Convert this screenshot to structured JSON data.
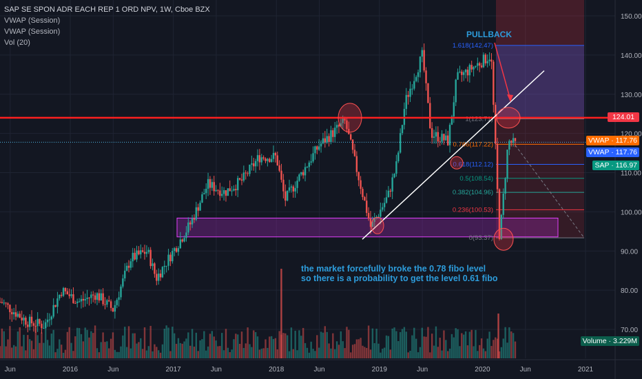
{
  "legend": {
    "title": "SAP SE SPON ADR EACH REP 1 ORD NPV, 1W, Cboe BZX",
    "indicators": [
      "VWAP (Session)",
      "VWAP (Session)",
      "Vol (20)"
    ]
  },
  "price_axis": {
    "ticks": [
      "150.00",
      "140.00",
      "130.00",
      "120.00",
      "110.00",
      "100.00",
      "90.00",
      "80.00",
      "70.00"
    ],
    "tick_values": [
      150,
      140,
      130,
      120,
      110,
      100,
      90,
      80,
      70
    ]
  },
  "time_axis": {
    "labels": [
      "Jun",
      "2016",
      "Jun",
      "2017",
      "Jun",
      "2018",
      "Jun",
      "2019",
      "Jun",
      "2020",
      "Jun",
      "2021"
    ]
  },
  "badges": {
    "level": {
      "label": "124.01",
      "color": "#f23645"
    },
    "vwap1": {
      "label": "VWAP",
      "value": "117.76",
      "color": "#ff6d00"
    },
    "vwap2": {
      "label": "VWAP",
      "value": "117.76",
      "color": "#2962ff"
    },
    "sap": {
      "label": "SAP",
      "value": "116.97",
      "color": "#089981"
    },
    "volume": {
      "label": "Volume",
      "value": "3.229M",
      "color": "#0b5d4b"
    }
  },
  "fibonacci": [
    {
      "label": "1.618(142.47)",
      "value": 142.47
    },
    {
      "label": "1(123.71)",
      "value": 123.71
    },
    {
      "label": "0.786(117.22)",
      "value": 117.22
    },
    {
      "label": "0.618(112.12)",
      "value": 112.12
    },
    {
      "label": "0.5(108.54)",
      "value": 108.54
    },
    {
      "label": "0.382(104.96)",
      "value": 104.96
    },
    {
      "label": "0.236(100.53)",
      "value": 100.53
    },
    {
      "label": "0(93.37)",
      "value": 93.37
    }
  ],
  "annotations": {
    "pullback": "PULLBACK",
    "note_line1": "the market forcefully broke the 0.78 fibo level",
    "note_line2": "so there is a probability to get the level 0.61 fibo"
  },
  "chart_data": {
    "type": "candlestick",
    "title": "SAP SE SPON ADR EACH REP 1 ORD NPV, 1W, Cboe BZX",
    "ylim": [
      66,
      153
    ],
    "horizontal_level": 124.01,
    "support_zone": [
      93.6,
      98.4
    ],
    "price_path": [
      {
        "date": "2015-05",
        "price": 77
      },
      {
        "date": "2015-08",
        "price": 72
      },
      {
        "date": "2015-10",
        "price": 71
      },
      {
        "date": "2015-12",
        "price": 80
      },
      {
        "date": "2016-02",
        "price": 77
      },
      {
        "date": "2016-04",
        "price": 79
      },
      {
        "date": "2016-06",
        "price": 75
      },
      {
        "date": "2016-08",
        "price": 88
      },
      {
        "date": "2016-10",
        "price": 90
      },
      {
        "date": "2016-11",
        "price": 83
      },
      {
        "date": "2017-01",
        "price": 90
      },
      {
        "date": "2017-03",
        "price": 97
      },
      {
        "date": "2017-05",
        "price": 107
      },
      {
        "date": "2017-07",
        "price": 105
      },
      {
        "date": "2017-09",
        "price": 108
      },
      {
        "date": "2017-11",
        "price": 114
      },
      {
        "date": "2018-01",
        "price": 114
      },
      {
        "date": "2018-02",
        "price": 103
      },
      {
        "date": "2018-04",
        "price": 110
      },
      {
        "date": "2018-06",
        "price": 117
      },
      {
        "date": "2018-08",
        "price": 121
      },
      {
        "date": "2018-09",
        "price": 123
      },
      {
        "date": "2018-10",
        "price": 114
      },
      {
        "date": "2018-12",
        "price": 96
      },
      {
        "date": "2019-02",
        "price": 104
      },
      {
        "date": "2019-03",
        "price": 112
      },
      {
        "date": "2019-04",
        "price": 128
      },
      {
        "date": "2019-06",
        "price": 140
      },
      {
        "date": "2019-07",
        "price": 120
      },
      {
        "date": "2019-09",
        "price": 118
      },
      {
        "date": "2019-10",
        "price": 134
      },
      {
        "date": "2019-12",
        "price": 137
      },
      {
        "date": "2020-02",
        "price": 140
      },
      {
        "date": "2020-03",
        "price": 93
      },
      {
        "date": "2020-04",
        "price": 118
      },
      {
        "date": "2020-05",
        "price": 117
      }
    ]
  }
}
